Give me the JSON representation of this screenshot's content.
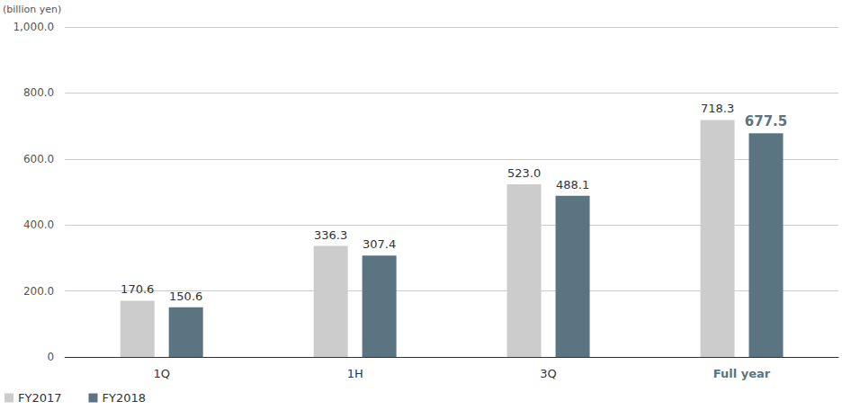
{
  "chart_data": {
    "type": "bar",
    "y_label": "(billion yen)",
    "categories": [
      "1Q",
      "1H",
      "3Q",
      "Full year"
    ],
    "series": [
      {
        "name": "FY2017",
        "color": "#cccccc",
        "values": [
          170.6,
          336.3,
          523.0,
          718.3
        ],
        "value_labels": [
          "170.6",
          "336.3",
          "523.0",
          "718.3"
        ]
      },
      {
        "name": "FY2018",
        "color": "#5a7482",
        "values": [
          150.6,
          307.4,
          488.1,
          677.5
        ],
        "value_labels": [
          "150.6",
          "307.4",
          "488.1",
          "677.5"
        ]
      }
    ],
    "ylim": [
      0,
      1000
    ],
    "yticks": [
      0,
      {
        "value": 200,
        "label": "200.0"
      },
      {
        "value": 400,
        "label": "400.0"
      },
      {
        "value": 600,
        "label": "600.0"
      },
      {
        "value": 800,
        "label": "800.0"
      },
      {
        "value": 1000,
        "label": "1,000.0"
      }
    ],
    "grid": true,
    "data_labels": true,
    "legend": "bottom-left"
  }
}
